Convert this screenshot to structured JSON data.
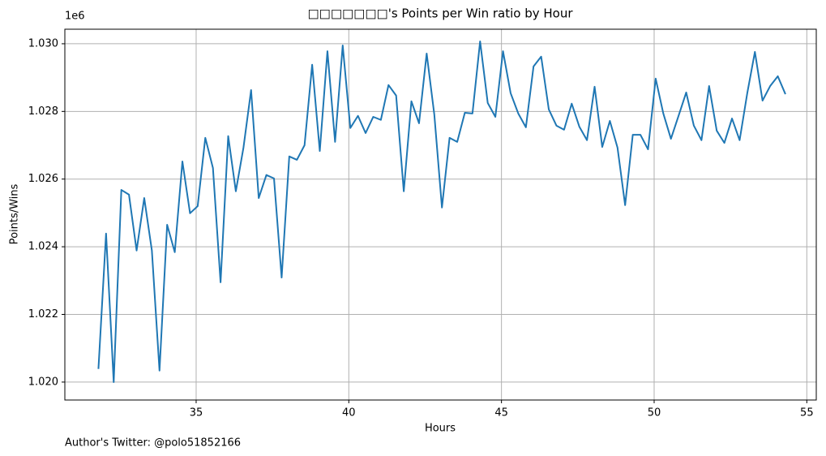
{
  "chart_data": {
    "type": "line",
    "title": "□□□□□□□'s Points per Win ratio by Hour",
    "x_label": "Hours",
    "y_label": "Points/Wins",
    "y_offset_label": "1e6",
    "annotation": "Author's Twitter: @polo51852166",
    "color": "#1f77b4",
    "grid": true,
    "xlim": [
      30.7,
      55.31
    ],
    "ylim": [
      1.01947,
      1.03043
    ],
    "xticks": [
      35,
      40,
      45,
      50,
      55
    ],
    "yticks": [
      {
        "value": 1.02,
        "label": "1.020"
      },
      {
        "value": 1.022,
        "label": "1.022"
      },
      {
        "value": 1.024,
        "label": "1.024"
      },
      {
        "value": 1.026,
        "label": "1.026"
      },
      {
        "value": 1.028,
        "label": "1.028"
      },
      {
        "value": 1.03,
        "label": "1.030"
      }
    ],
    "x": [
      31.8,
      32.05,
      32.3,
      32.55,
      32.8,
      33.05,
      33.3,
      33.55,
      33.8,
      34.05,
      34.3,
      34.55,
      34.8,
      35.05,
      35.3,
      35.55,
      35.8,
      36.05,
      36.3,
      36.55,
      36.8,
      37.05,
      37.3,
      37.55,
      37.8,
      38.05,
      38.3,
      38.55,
      38.8,
      39.05,
      39.3,
      39.55,
      39.8,
      40.05,
      40.3,
      40.55,
      40.8,
      41.05,
      41.3,
      41.55,
      41.8,
      42.05,
      42.3,
      42.55,
      42.8,
      43.05,
      43.3,
      43.55,
      43.8,
      44.05,
      44.3,
      44.55,
      44.8,
      45.05,
      45.3,
      45.55,
      45.8,
      46.05,
      46.3,
      46.55,
      46.8,
      47.05,
      47.3,
      47.55,
      47.8,
      48.05,
      48.3,
      48.55,
      48.8,
      49.05,
      49.3,
      49.55,
      49.8,
      50.05,
      50.3,
      50.55,
      50.8,
      51.05,
      51.3,
      51.55,
      51.8,
      52.05,
      52.3,
      52.55,
      52.8,
      53.05,
      53.3,
      53.55,
      53.8,
      54.05,
      54.3
    ],
    "values": [
      1.02039,
      1.02439,
      1.02,
      1.02568,
      1.02554,
      1.02389,
      1.02544,
      1.02389,
      1.02034,
      1.02465,
      1.02384,
      1.02652,
      1.02499,
      1.0252,
      1.02722,
      1.02633,
      1.02295,
      1.02727,
      1.02564,
      1.02693,
      1.02863,
      1.02544,
      1.02612,
      1.02602,
      1.02309,
      1.02667,
      1.02657,
      1.027,
      1.02938,
      1.02683,
      1.02978,
      1.0271,
      1.02995,
      1.02751,
      1.02787,
      1.02736,
      1.02784,
      1.02775,
      1.02878,
      1.02847,
      1.02564,
      1.0283,
      1.02765,
      1.02971,
      1.02791,
      1.02516,
      1.02722,
      1.0271,
      1.02796,
      1.02794,
      1.03007,
      1.02825,
      1.02784,
      1.02978,
      1.02854,
      1.02794,
      1.02753,
      1.02933,
      1.02962,
      1.02806,
      1.02758,
      1.02746,
      1.02823,
      1.02755,
      1.02715,
      1.02873,
      1.02695,
      1.02772,
      1.02693,
      1.02523,
      1.02731,
      1.02731,
      1.02688,
      1.02897,
      1.02794,
      1.02719,
      1.02787,
      1.02856,
      1.02758,
      1.02715,
      1.02875,
      1.02743,
      1.02707,
      1.02779,
      1.02715,
      1.02854,
      1.02976,
      1.02832,
      1.02875,
      1.02904,
      1.02851
    ]
  }
}
